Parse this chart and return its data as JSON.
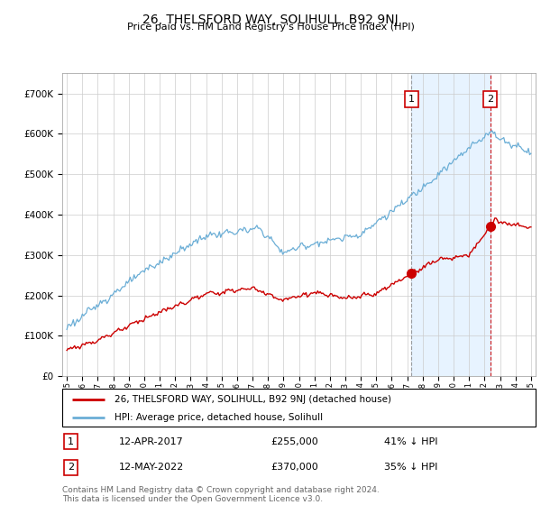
{
  "title": "26, THELSFORD WAY, SOLIHULL, B92 9NJ",
  "subtitle": "Price paid vs. HM Land Registry's House Price Index (HPI)",
  "ylim": [
    0,
    750000
  ],
  "yticks": [
    0,
    100000,
    200000,
    300000,
    400000,
    500000,
    600000,
    700000
  ],
  "ytick_labels": [
    "£0",
    "£100K",
    "£200K",
    "£300K",
    "£400K",
    "£500K",
    "£600K",
    "£700K"
  ],
  "hpi_color": "#6baed6",
  "price_color": "#cc0000",
  "marker1_year": 2017.28,
  "marker1_price": 255000,
  "marker2_year": 2022.37,
  "marker2_price": 370000,
  "legend_line1": "26, THELSFORD WAY, SOLIHULL, B92 9NJ (detached house)",
  "legend_line2": "HPI: Average price, detached house, Solihull",
  "note1_label": "1",
  "note1_date": "12-APR-2017",
  "note1_price": "£255,000",
  "note1_pct": "41% ↓ HPI",
  "note2_label": "2",
  "note2_date": "12-MAY-2022",
  "note2_price": "£370,000",
  "note2_pct": "35% ↓ HPI",
  "footer": "Contains HM Land Registry data © Crown copyright and database right 2024.\nThis data is licensed under the Open Government Licence v3.0.",
  "background_color": "#ffffff",
  "grid_color": "#cccccc",
  "shade_color": "#ddeeff"
}
